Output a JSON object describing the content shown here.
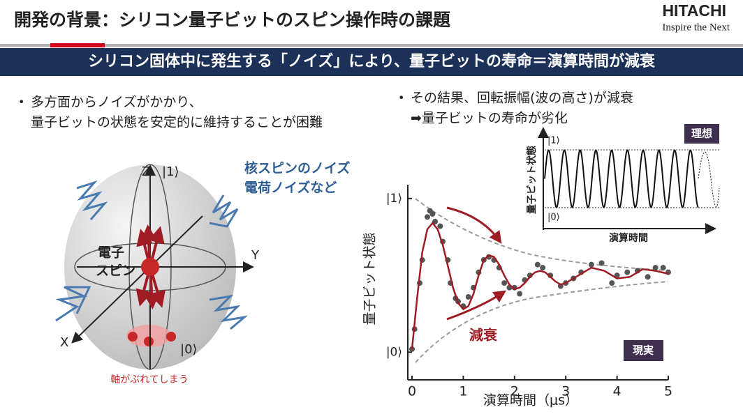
{
  "header": {
    "title": "開発の背景：シリコン量子ビットのスピン操作時の課題",
    "logo": "HITACHI",
    "tagline": "Inspire the Next"
  },
  "banner": "シリコン固体中に発生する「ノイズ」により、量子ビットの寿命＝演算時間が減衰",
  "left": {
    "bullet": [
      "多方面からノイズがかかり、",
      "量子ビットの状態を安定的に維持することが困難"
    ],
    "sphere": {
      "z": "Z",
      "one": "|1⟩",
      "y": "Y",
      "x": "X",
      "zero": "|0⟩",
      "spin": [
        "電子",
        "スピン"
      ],
      "noise": [
        "核スピンのノイズ",
        "電荷ノイズなど"
      ],
      "caption": "軸がぶれてしまう"
    }
  },
  "right": {
    "bullet": [
      "その結果、回転振幅(波の高さ)が減衰",
      "➡量子ビットの寿命が劣化"
    ],
    "inset": {
      "tag": "理想",
      "ylabel": "量子ビット状態",
      "xlabel": "演算時間",
      "one": "|1⟩",
      "zero": "|0⟩"
    }
  },
  "chart_data": {
    "type": "scatter",
    "ylabel": "量子ビット状態",
    "xlabel": "演算時間（μs）",
    "annotation": "減衰",
    "tag": "現実",
    "xlim": [
      0,
      5
    ],
    "xticks": [
      0,
      1,
      2,
      3,
      4,
      5
    ],
    "ylim": [
      -0.18,
      1.09
    ],
    "yticks": [
      {
        "value": 0,
        "label": "|0⟩"
      },
      {
        "value": 1,
        "label": "|1⟩"
      }
    ],
    "series": [
      {
        "color": "#555555",
        "x": [
          0,
          0.05,
          0.15,
          0.2,
          0.3,
          0.35,
          0.4,
          0.45,
          0.55,
          0.6,
          0.7,
          0.75,
          0.85,
          0.9,
          1.0,
          1.1,
          1.2,
          1.3,
          1.4,
          1.5,
          1.6,
          1.7,
          1.8,
          1.9,
          2.0,
          2.1,
          2.2,
          2.3,
          2.45,
          2.55,
          2.7,
          2.9,
          3.0,
          3.15,
          3.3,
          3.5,
          3.7,
          3.9,
          4.0,
          4.2,
          4.4,
          4.6,
          4.75,
          4.9,
          5.0
        ],
        "values": [
          0.02,
          0.15,
          0.45,
          0.6,
          0.88,
          0.92,
          0.9,
          0.85,
          0.82,
          0.72,
          0.6,
          0.45,
          0.35,
          0.33,
          0.3,
          0.36,
          0.42,
          0.52,
          0.6,
          0.62,
          0.6,
          0.55,
          0.45,
          0.42,
          0.42,
          0.38,
          0.47,
          0.5,
          0.57,
          0.55,
          0.5,
          0.43,
          0.45,
          0.48,
          0.52,
          0.57,
          0.58,
          0.45,
          0.5,
          0.52,
          0.53,
          0.49,
          0.55,
          0.55,
          0.52
        ]
      },
      {
        "color": "#a01c24",
        "line": true,
        "x": [
          0,
          0.1,
          0.2,
          0.3,
          0.4,
          0.5,
          0.6,
          0.7,
          0.8,
          0.9,
          1.0,
          1.1,
          1.2,
          1.3,
          1.4,
          1.5,
          1.6,
          1.7,
          1.8,
          1.9,
          2.0,
          2.1,
          2.2,
          2.3,
          2.4,
          2.5,
          2.6,
          2.7,
          2.8,
          2.9,
          3.0,
          3.25,
          3.5,
          3.75,
          4.0,
          4.25,
          4.5,
          4.75,
          5.0
        ],
        "values": [
          0.02,
          0.35,
          0.65,
          0.8,
          0.84,
          0.8,
          0.7,
          0.56,
          0.42,
          0.32,
          0.28,
          0.3,
          0.38,
          0.5,
          0.6,
          0.63,
          0.62,
          0.57,
          0.5,
          0.44,
          0.41,
          0.42,
          0.45,
          0.49,
          0.52,
          0.53,
          0.52,
          0.49,
          0.46,
          0.44,
          0.45,
          0.5,
          0.55,
          0.53,
          0.48,
          0.49,
          0.54,
          0.53,
          0.51
        ]
      }
    ]
  }
}
